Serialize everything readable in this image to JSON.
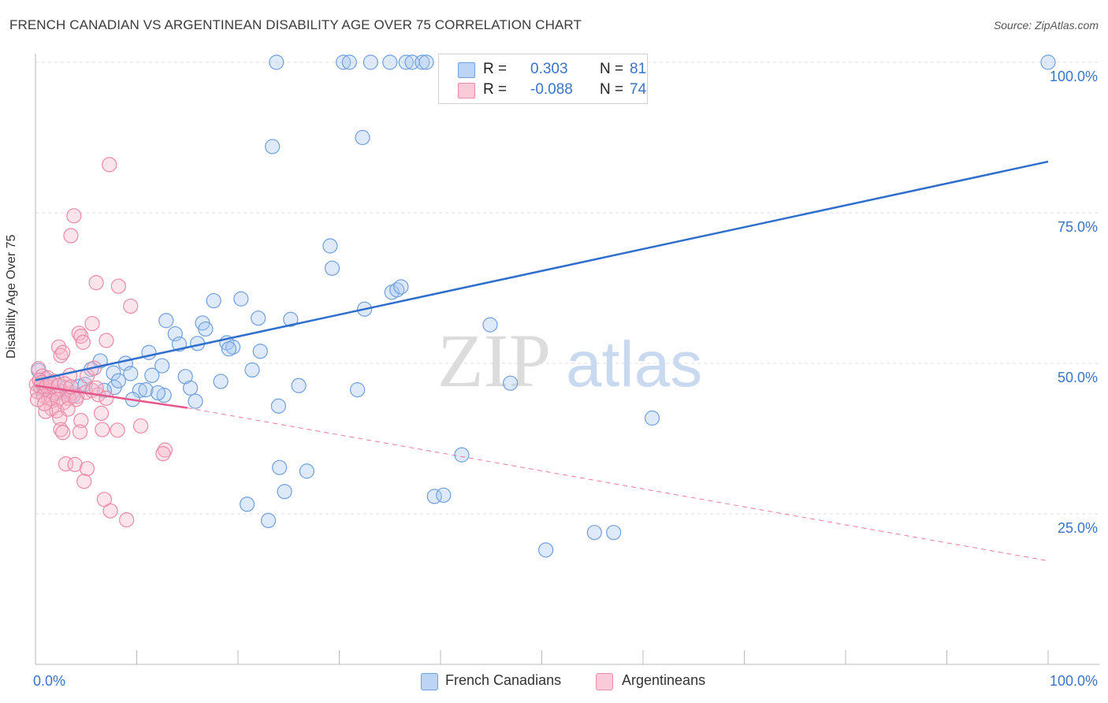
{
  "title": "FRENCH CANADIAN VS ARGENTINEAN DISABILITY AGE OVER 75 CORRELATION CHART",
  "source": "Source: ZipAtlas.com",
  "watermark": {
    "zip": "ZIP",
    "atlas": "atlas"
  },
  "legend": {
    "r_label": "R =",
    "n_label": "N =",
    "series": [
      {
        "name": "French Canadians",
        "r": "0.303",
        "n": "81",
        "color": "#a9c7f0",
        "stroke": "#6f9fdc"
      },
      {
        "name": "Argentineans",
        "r": "-0.088",
        "n": "74",
        "color": "#f7b9cb",
        "stroke": "#e98aa8"
      }
    ]
  },
  "chart_data": {
    "type": "scatter",
    "ylabel": "Disability Age Over 75",
    "x_tick_labels": [
      "0.0%",
      "100.0%"
    ],
    "y_tick_labels": [
      "25.0%",
      "50.0%",
      "75.0%",
      "100.0%"
    ],
    "xlim": [
      0,
      100
    ],
    "ylim": [
      0,
      102
    ],
    "y_gridlines": [
      25,
      50,
      75,
      100
    ],
    "series": [
      {
        "name": "French Canadians",
        "color": "#6f9fdc",
        "trend": {
          "x0": 0,
          "y0": 47.2,
          "x1": 100,
          "y1": 83.5,
          "color": "#2f6fcb"
        },
        "points": [
          [
            23.8,
            100
          ],
          [
            30.4,
            100
          ],
          [
            31.0,
            100
          ],
          [
            33.1,
            100
          ],
          [
            35.0,
            100
          ],
          [
            36.6,
            100
          ],
          [
            37.2,
            100
          ],
          [
            38.2,
            100
          ],
          [
            38.6,
            100
          ],
          [
            54.9,
            100
          ],
          [
            57.5,
            100
          ],
          [
            100,
            100
          ],
          [
            23.4,
            86.0
          ],
          [
            32.3,
            87.5
          ],
          [
            29.1,
            69.5
          ],
          [
            29.3,
            65.8
          ],
          [
            35.2,
            61.8
          ],
          [
            35.7,
            62.2
          ],
          [
            36.1,
            62.7
          ],
          [
            17.6,
            60.4
          ],
          [
            20.3,
            60.7
          ],
          [
            32.5,
            59.0
          ],
          [
            22.0,
            57.5
          ],
          [
            25.2,
            57.3
          ],
          [
            12.9,
            57.1
          ],
          [
            16.5,
            56.7
          ],
          [
            44.9,
            56.4
          ],
          [
            16.8,
            55.7
          ],
          [
            13.8,
            54.9
          ],
          [
            14.2,
            53.2
          ],
          [
            16.0,
            53.3
          ],
          [
            18.9,
            53.4
          ],
          [
            19.5,
            52.7
          ],
          [
            19.1,
            52.4
          ],
          [
            22.2,
            52.0
          ],
          [
            11.2,
            51.8
          ],
          [
            6.4,
            50.4
          ],
          [
            8.9,
            50.0
          ],
          [
            12.5,
            49.6
          ],
          [
            21.4,
            48.9
          ],
          [
            5.5,
            49.0
          ],
          [
            7.7,
            48.4
          ],
          [
            9.4,
            48.3
          ],
          [
            11.5,
            48.0
          ],
          [
            14.8,
            47.8
          ],
          [
            18.3,
            47.0
          ],
          [
            26.0,
            46.3
          ],
          [
            1.9,
            46.8
          ],
          [
            4.4,
            46.2
          ],
          [
            7.8,
            46.0
          ],
          [
            46.9,
            46.7
          ],
          [
            3.0,
            45.9
          ],
          [
            6.8,
            45.5
          ],
          [
            10.3,
            45.5
          ],
          [
            15.3,
            45.9
          ],
          [
            10.9,
            45.6
          ],
          [
            31.8,
            45.6
          ],
          [
            12.7,
            44.7
          ],
          [
            9.6,
            44.0
          ],
          [
            15.8,
            43.7
          ],
          [
            24.0,
            42.9
          ],
          [
            60.9,
            40.9
          ],
          [
            42.1,
            34.8
          ],
          [
            24.1,
            32.7
          ],
          [
            26.8,
            32.1
          ],
          [
            24.6,
            28.7
          ],
          [
            39.4,
            27.9
          ],
          [
            40.3,
            28.1
          ],
          [
            20.9,
            26.6
          ],
          [
            23.0,
            23.9
          ],
          [
            55.2,
            21.9
          ],
          [
            57.1,
            21.9
          ],
          [
            50.4,
            19.0
          ],
          [
            0.3,
            48.8
          ],
          [
            1.0,
            47.4
          ],
          [
            2.1,
            45.0
          ],
          [
            0.6,
            45.7
          ],
          [
            3.7,
            44.6
          ],
          [
            4.9,
            46.5
          ],
          [
            8.2,
            47.1
          ],
          [
            12.1,
            45.1
          ]
        ]
      },
      {
        "name": "Argentineans",
        "color": "#e98aa8",
        "trend": {
          "x0": 0,
          "y0": 46.3,
          "x1": 15,
          "y1": 42.6,
          "color": "#e4588a",
          "dash_x1": 100,
          "dash_y1": 17.2
        },
        "points": [
          [
            7.3,
            83.0
          ],
          [
            3.8,
            74.5
          ],
          [
            3.5,
            71.2
          ],
          [
            6.0,
            63.4
          ],
          [
            8.2,
            62.8
          ],
          [
            9.4,
            59.5
          ],
          [
            5.6,
            56.6
          ],
          [
            4.3,
            55.0
          ],
          [
            4.5,
            54.5
          ],
          [
            7.0,
            53.8
          ],
          [
            2.3,
            52.7
          ],
          [
            2.5,
            51.3
          ],
          [
            2.7,
            51.8
          ],
          [
            4.7,
            53.5
          ],
          [
            0.3,
            49.1
          ],
          [
            0.7,
            47.9
          ],
          [
            1.2,
            47.6
          ],
          [
            1.9,
            47.0
          ],
          [
            3.4,
            48.0
          ],
          [
            5.1,
            47.9
          ],
          [
            5.8,
            49.2
          ],
          [
            0.1,
            46.5
          ],
          [
            0.5,
            46.0
          ],
          [
            0.9,
            45.8
          ],
          [
            1.4,
            45.5
          ],
          [
            2.0,
            45.0
          ],
          [
            2.6,
            45.3
          ],
          [
            3.1,
            44.9
          ],
          [
            3.6,
            45.1
          ],
          [
            4.1,
            44.5
          ],
          [
            5.0,
            45.2
          ],
          [
            5.6,
            45.5
          ],
          [
            6.2,
            44.8
          ],
          [
            0.2,
            45.3
          ],
          [
            0.8,
            44.6
          ],
          [
            1.3,
            44.2
          ],
          [
            1.7,
            43.8
          ],
          [
            2.2,
            44.0
          ],
          [
            2.8,
            43.5
          ],
          [
            3.3,
            44.2
          ],
          [
            4.0,
            44.0
          ],
          [
            1.6,
            42.5
          ],
          [
            2.1,
            42.1
          ],
          [
            3.2,
            42.4
          ],
          [
            1.0,
            42.0
          ],
          [
            6.5,
            41.7
          ],
          [
            2.4,
            40.9
          ],
          [
            4.5,
            40.5
          ],
          [
            2.5,
            39.0
          ],
          [
            2.7,
            38.5
          ],
          [
            4.4,
            38.6
          ],
          [
            6.6,
            39.0
          ],
          [
            8.1,
            38.9
          ],
          [
            10.4,
            39.6
          ],
          [
            12.8,
            35.6
          ],
          [
            12.6,
            35.0
          ],
          [
            3.0,
            33.3
          ],
          [
            3.9,
            33.2
          ],
          [
            5.1,
            32.5
          ],
          [
            4.8,
            30.4
          ],
          [
            6.8,
            27.4
          ],
          [
            7.4,
            25.5
          ],
          [
            9.0,
            24.0
          ],
          [
            0.4,
            47.2
          ],
          [
            0.6,
            46.8
          ],
          [
            1.1,
            46.2
          ],
          [
            1.5,
            46.7
          ],
          [
            2.3,
            46.3
          ],
          [
            2.9,
            46.6
          ],
          [
            3.5,
            46.1
          ],
          [
            0.2,
            44.0
          ],
          [
            0.9,
            43.3
          ],
          [
            6.0,
            45.9
          ],
          [
            7.0,
            44.2
          ]
        ]
      }
    ]
  }
}
